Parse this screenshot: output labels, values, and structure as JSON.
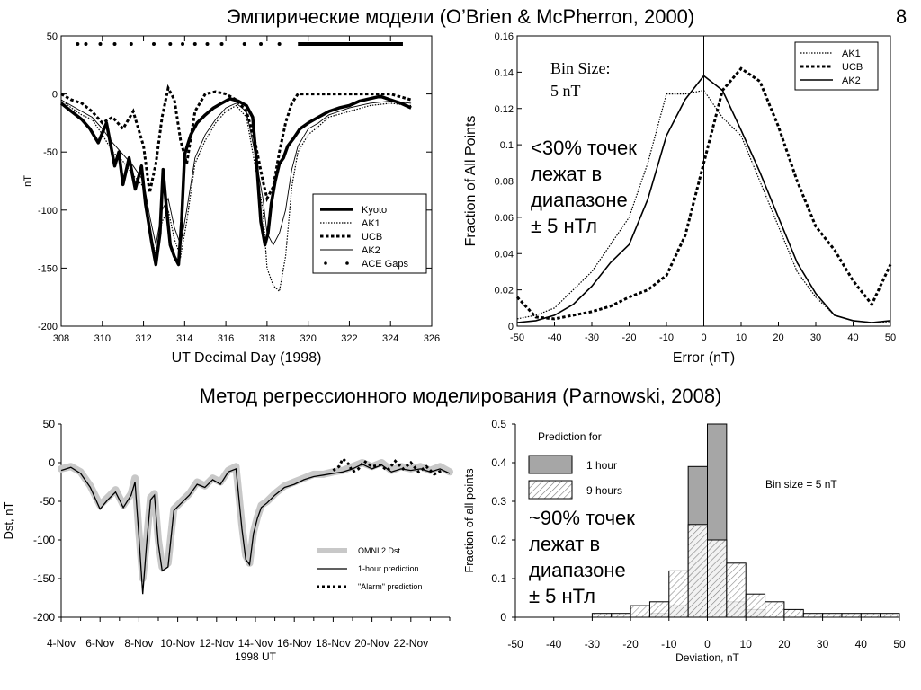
{
  "slide": {
    "title_top": "Эмпирические модели (O’Brien & McPherron, 2000)",
    "number": "8",
    "title_bottom": "Метод регрессионного моделирования (Parnowski, 2008)"
  },
  "colors": {
    "series_black": "#000000",
    "omni_band": "#c8c8c8",
    "bar_1hour": "#a6a6a6",
    "bar_9hours_hatch": "#7a7a7a"
  },
  "chart_data": [
    {
      "id": "obrien_timeseries",
      "type": "line",
      "title": "",
      "xlabel": "UT Decimal Day (1998)",
      "ylabel": "nT",
      "xlim": [
        308,
        326
      ],
      "ylim": [
        -200,
        50
      ],
      "xticks": [
        308,
        310,
        312,
        314,
        316,
        318,
        320,
        322,
        324,
        326
      ],
      "yticks": [
        50,
        0,
        -50,
        -100,
        -150,
        -200
      ],
      "legend_position": "lower-right",
      "series": [
        {
          "name": "Kyoto",
          "style": "thick",
          "x": [
            308.0,
            308.5,
            309.0,
            309.4,
            309.8,
            310.2,
            310.6,
            310.8,
            311.0,
            311.3,
            311.6,
            311.9,
            312.1,
            312.4,
            312.6,
            312.8,
            312.95,
            313.1,
            313.3,
            313.5,
            313.7,
            313.85,
            314.0,
            314.3,
            314.6,
            315.0,
            315.4,
            315.8,
            316.2,
            316.6,
            317.0,
            317.3,
            317.5,
            317.7,
            317.9,
            318.05,
            318.2,
            318.4,
            318.6,
            318.8,
            319.0,
            319.3,
            319.6,
            320.0,
            320.5,
            321.0,
            321.5,
            322.0,
            322.5,
            323.0,
            323.5,
            324.0,
            324.5,
            325.0
          ],
          "y": [
            -8,
            -15,
            -22,
            -30,
            -42,
            -25,
            -62,
            -50,
            -78,
            -55,
            -82,
            -62,
            -95,
            -128,
            -147,
            -120,
            -65,
            -95,
            -130,
            -140,
            -147,
            -110,
            -52,
            -35,
            -25,
            -18,
            -12,
            -8,
            -4,
            -6,
            -10,
            -20,
            -60,
            -110,
            -130,
            -120,
            -95,
            -75,
            -60,
            -55,
            -45,
            -38,
            -30,
            -25,
            -20,
            -15,
            -12,
            -10,
            -6,
            -4,
            -2,
            -5,
            -8,
            -12
          ]
        },
        {
          "name": "AK1",
          "style": "dotted",
          "x": [
            308.0,
            308.5,
            309.0,
            309.5,
            310.0,
            310.5,
            311.0,
            311.5,
            312.0,
            312.3,
            312.6,
            312.9,
            313.2,
            313.5,
            313.8,
            314.1,
            314.5,
            315.0,
            315.5,
            316.0,
            316.5,
            317.0,
            317.4,
            317.8,
            318.0,
            318.3,
            318.6,
            318.9,
            319.2,
            319.5,
            320.0,
            320.5,
            321.0,
            322.0,
            323.0,
            324.0,
            325.0
          ],
          "y": [
            -5,
            -12,
            -18,
            -22,
            -35,
            -50,
            -58,
            -70,
            -80,
            -115,
            -140,
            -110,
            -100,
            -125,
            -140,
            -110,
            -60,
            -40,
            -25,
            -15,
            -10,
            -20,
            -60,
            -100,
            -150,
            -165,
            -170,
            -140,
            -80,
            -50,
            -35,
            -28,
            -20,
            -15,
            -10,
            -8,
            -10
          ]
        },
        {
          "name": "UCB",
          "style": "dashed",
          "x": [
            308.0,
            308.5,
            309.0,
            309.5,
            310.0,
            310.5,
            311.0,
            311.5,
            312.0,
            312.3,
            312.6,
            312.9,
            313.2,
            313.5,
            313.8,
            314.1,
            314.5,
            315.0,
            315.5,
            316.0,
            316.5,
            317.0,
            317.4,
            317.8,
            318.0,
            318.3,
            318.6,
            318.9,
            319.2,
            319.5,
            320.0,
            320.5,
            321.0,
            322.0,
            323.0,
            324.0,
            325.0
          ],
          "y": [
            0,
            -5,
            -8,
            -15,
            -25,
            -20,
            -30,
            -15,
            -45,
            -85,
            -60,
            -20,
            5,
            -5,
            -40,
            -60,
            -15,
            0,
            2,
            0,
            -5,
            -15,
            -40,
            -75,
            -90,
            -80,
            -50,
            -25,
            -8,
            0,
            0,
            0,
            0,
            0,
            0,
            0,
            -5
          ]
        },
        {
          "name": "AK2",
          "style": "thin",
          "x": [
            308.0,
            308.5,
            309.0,
            309.5,
            310.0,
            310.5,
            311.0,
            311.5,
            312.0,
            312.3,
            312.6,
            312.9,
            313.2,
            313.5,
            313.8,
            314.1,
            314.5,
            315.0,
            315.5,
            316.0,
            316.5,
            317.0,
            317.4,
            317.8,
            318.0,
            318.3,
            318.6,
            318.9,
            319.2,
            319.5,
            320.0,
            320.5,
            321.0,
            322.0,
            323.0,
            324.0,
            325.0
          ],
          "y": [
            -5,
            -10,
            -15,
            -20,
            -30,
            -42,
            -52,
            -62,
            -75,
            -105,
            -130,
            -100,
            -90,
            -115,
            -130,
            -100,
            -55,
            -35,
            -22,
            -12,
            -8,
            -15,
            -50,
            -90,
            -120,
            -130,
            -120,
            -100,
            -65,
            -45,
            -30,
            -25,
            -18,
            -12,
            -8,
            -6,
            -8
          ]
        }
      ],
      "ace_gaps_x": [
        308.8,
        309.2,
        309.9,
        310.6,
        311.4,
        312.5,
        313.3,
        313.9,
        314.5,
        315.1,
        315.8,
        316.9,
        317.7,
        318.6
      ],
      "ace_gaps_span": [
        319.5,
        324.6
      ],
      "ace_gaps_y": 43
    },
    {
      "id": "obrien_histogram",
      "type": "line",
      "title": "",
      "xlabel": "Error (nT)",
      "ylabel": "Fraction of All Points",
      "xlim": [
        -50,
        50
      ],
      "ylim": [
        0,
        0.16
      ],
      "xticks": [
        -50,
        -40,
        -30,
        -20,
        -10,
        0,
        10,
        20,
        30,
        40,
        50
      ],
      "yticks": [
        0,
        0.02,
        0.04,
        0.06,
        0.08,
        0.1,
        0.12,
        0.14,
        0.16
      ],
      "annotation": [
        "Bin Size:",
        "5 nT"
      ],
      "legend_position": "top-right",
      "series": [
        {
          "name": "AK1",
          "style": "dotted",
          "x": [
            -50,
            -45,
            -40,
            -35,
            -30,
            -25,
            -20,
            -15,
            -10,
            -5,
            0,
            5,
            10,
            15,
            20,
            25,
            30,
            35,
            40,
            45,
            50
          ],
          "y": [
            0.004,
            0.006,
            0.01,
            0.02,
            0.03,
            0.045,
            0.06,
            0.09,
            0.128,
            0.128,
            0.13,
            0.115,
            0.105,
            0.08,
            0.055,
            0.03,
            0.016,
            0.006,
            0.003,
            0.002,
            0.002
          ]
        },
        {
          "name": "UCB",
          "style": "dashed",
          "x": [
            -50,
            -45,
            -40,
            -35,
            -30,
            -25,
            -20,
            -15,
            -10,
            -5,
            0,
            5,
            10,
            15,
            20,
            25,
            30,
            35,
            40,
            45,
            50
          ],
          "y": [
            0.016,
            0.005,
            0.004,
            0.006,
            0.008,
            0.011,
            0.016,
            0.02,
            0.028,
            0.05,
            0.09,
            0.13,
            0.142,
            0.135,
            0.11,
            0.08,
            0.055,
            0.042,
            0.025,
            0.012,
            0.034
          ]
        },
        {
          "name": "AK2",
          "style": "solid",
          "x": [
            -50,
            -45,
            -40,
            -35,
            -30,
            -25,
            -20,
            -15,
            -10,
            -5,
            0,
            5,
            10,
            15,
            20,
            25,
            30,
            35,
            40,
            45,
            50
          ],
          "y": [
            0.002,
            0.003,
            0.006,
            0.012,
            0.022,
            0.035,
            0.045,
            0.07,
            0.105,
            0.125,
            0.138,
            0.13,
            0.108,
            0.085,
            0.06,
            0.035,
            0.018,
            0.006,
            0.003,
            0.002,
            0.003
          ]
        }
      ],
      "note": [
        "<30% точек",
        "лежат в",
        "диапазоне",
        "± 5 нТл"
      ]
    },
    {
      "id": "parnowski_timeseries",
      "type": "line",
      "title": "",
      "xlabel": "1998 UT",
      "ylabel": "Dst, nT",
      "xlim": [
        4,
        24
      ],
      "ylim": [
        -200,
        50
      ],
      "xtick_values": [
        4,
        6,
        8,
        10,
        12,
        14,
        16,
        18,
        20,
        22
      ],
      "xtick_labels": [
        "4-Nov",
        "6-Nov",
        "8-Nov",
        "10-Nov",
        "12-Nov",
        "14-Nov",
        "16-Nov",
        "18-Nov",
        "20-Nov",
        "22-Nov"
      ],
      "minor_xticks": [
        5,
        7,
        9,
        11,
        13,
        15,
        17,
        19,
        21,
        23,
        24
      ],
      "yticks": [
        50,
        0,
        -50,
        -100,
        -150,
        -200
      ],
      "legend_position": "lower-right",
      "legend": [
        "OMNI 2 Dst",
        "1-hour prediction",
        "\"Alarm\" prediction"
      ],
      "x": [
        4.0,
        4.5,
        5.0,
        5.5,
        6.0,
        6.4,
        6.8,
        7.2,
        7.6,
        7.8,
        8.0,
        8.2,
        8.4,
        8.6,
        8.8,
        9.0,
        9.2,
        9.5,
        9.8,
        10.2,
        10.6,
        11.0,
        11.4,
        11.8,
        12.2,
        12.6,
        13.0,
        13.3,
        13.5,
        13.7,
        13.9,
        14.1,
        14.3,
        14.6,
        15.0,
        15.5,
        16.0,
        16.5,
        17.0,
        17.5,
        18.0,
        18.5,
        19.0,
        19.5,
        20.0,
        20.5,
        21.0,
        21.5,
        22.0,
        22.5,
        23.0,
        23.5,
        24.0
      ],
      "omni_values": [
        -8,
        -5,
        -12,
        -30,
        -55,
        -45,
        -35,
        -55,
        -40,
        -20,
        -90,
        -150,
        -100,
        -45,
        -40,
        -100,
        -135,
        -130,
        -60,
        -50,
        -40,
        -25,
        -30,
        -20,
        -25,
        -10,
        -5,
        -80,
        -120,
        -130,
        -90,
        -70,
        -55,
        -50,
        -40,
        -30,
        -25,
        -20,
        -15,
        -15,
        -12,
        -10,
        -5,
        0,
        -5,
        0,
        -10,
        -5,
        -8,
        -5,
        -10,
        -5,
        -12
      ],
      "prediction_values": [
        -10,
        -6,
        -14,
        -32,
        -60,
        -48,
        -38,
        -58,
        -42,
        -25,
        -95,
        -170,
        -105,
        -48,
        -42,
        -105,
        -140,
        -135,
        -62,
        -52,
        -42,
        -28,
        -32,
        -22,
        -28,
        -12,
        -8,
        -85,
        -125,
        -132,
        -92,
        -72,
        -58,
        -52,
        -42,
        -32,
        -28,
        -22,
        -18,
        -16,
        -14,
        -12,
        -8,
        -2,
        -8,
        -3,
        -12,
        -8,
        -10,
        -8,
        -12,
        -8,
        -14
      ],
      "alarm_x": [
        18.0,
        18.3,
        18.5,
        18.8,
        19.0,
        19.3,
        19.6,
        20.0,
        20.4,
        20.8,
        21.2,
        21.6,
        22.0,
        22.4,
        22.8,
        23.2,
        23.6
      ],
      "alarm_values": [
        -10,
        -5,
        5,
        -2,
        -12,
        -8,
        2,
        -5,
        -3,
        -10,
        2,
        -8,
        0,
        -12,
        -5,
        -15,
        -10
      ]
    },
    {
      "id": "parnowski_histogram",
      "type": "bar",
      "title": "",
      "xlabel": "Deviation, nT",
      "ylabel": "Fraction of all points",
      "xlim": [
        -50,
        50
      ],
      "ylim": [
        0,
        0.5
      ],
      "xticks": [
        -50,
        -40,
        -30,
        -20,
        -10,
        0,
        10,
        20,
        30,
        40,
        50
      ],
      "yticks": [
        0,
        0.1,
        0.2,
        0.3,
        0.4,
        0.5
      ],
      "legend_title": "Prediction for",
      "bin_edges": [
        -30,
        -25,
        -20,
        -15,
        -10,
        -5,
        0,
        5,
        10,
        15,
        20,
        25,
        30,
        35,
        40,
        45,
        50
      ],
      "series": [
        {
          "name": "1 hour",
          "values": [
            0,
            0,
            0,
            0.01,
            0.03,
            0.39,
            0.5,
            0.04,
            0.02,
            0,
            0,
            0,
            0,
            0,
            0,
            0
          ]
        },
        {
          "name": "9 hours",
          "values": [
            0.01,
            0.01,
            0.03,
            0.04,
            0.12,
            0.24,
            0.2,
            0.14,
            0.06,
            0.04,
            0.02,
            0.01,
            0.01,
            0.01,
            0.01,
            0.01
          ]
        }
      ],
      "annotation": "Bin size = 5 nT",
      "note": [
        "~90% точек",
        "лежат в",
        "диапазоне",
        "± 5 нТл"
      ]
    }
  ]
}
